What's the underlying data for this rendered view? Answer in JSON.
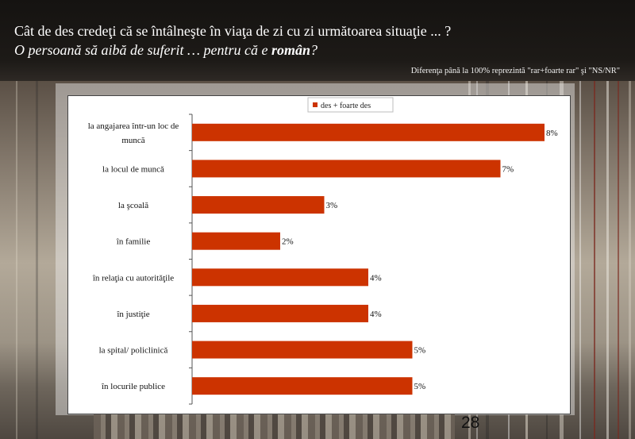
{
  "header": {
    "question": "Cât de des credeţi că se întâlneşte în viaţa de zi cu zi următoarea situaţie ... ?",
    "subquestion_prefix": "O persoană să aibă de suferit … pentru că e ",
    "subquestion_bold": "român",
    "subquestion_suffix": "?",
    "note": "Diferenţa până la 100% reprezintă  \"rar+foarte rar\" şi \"NS/NR\""
  },
  "page_number": "28",
  "colors": {
    "bar": "#cc3300",
    "header_bg": "#1a1714",
    "text": "#ffffff"
  },
  "chart_data": {
    "type": "bar",
    "orientation": "horizontal",
    "categories": [
      "la angajarea într-un loc de muncă",
      "la locul de muncă",
      "la şcoală",
      "în familie",
      "în relaţia cu autorităţile",
      "în justiţie",
      "la spital/ policlinică",
      "în locurile publice"
    ],
    "category_lines": [
      [
        "la angajarea într-un loc de",
        "muncă"
      ],
      [
        "la locul de muncă"
      ],
      [
        "la şcoală"
      ],
      [
        "în familie"
      ],
      [
        "în relaţia cu autorităţile"
      ],
      [
        "în justiţie"
      ],
      [
        "la spital/ policlinică"
      ],
      [
        "în locurile publice"
      ]
    ],
    "series": [
      {
        "name": "des + foarte des",
        "values": [
          8,
          7,
          3,
          2,
          4,
          4,
          5,
          5
        ]
      }
    ],
    "value_labels": [
      "8%",
      "7%",
      "3%",
      "2%",
      "4%",
      "4%",
      "5%",
      "5%"
    ],
    "xlim": [
      0,
      8
    ],
    "legend_position": "top"
  }
}
